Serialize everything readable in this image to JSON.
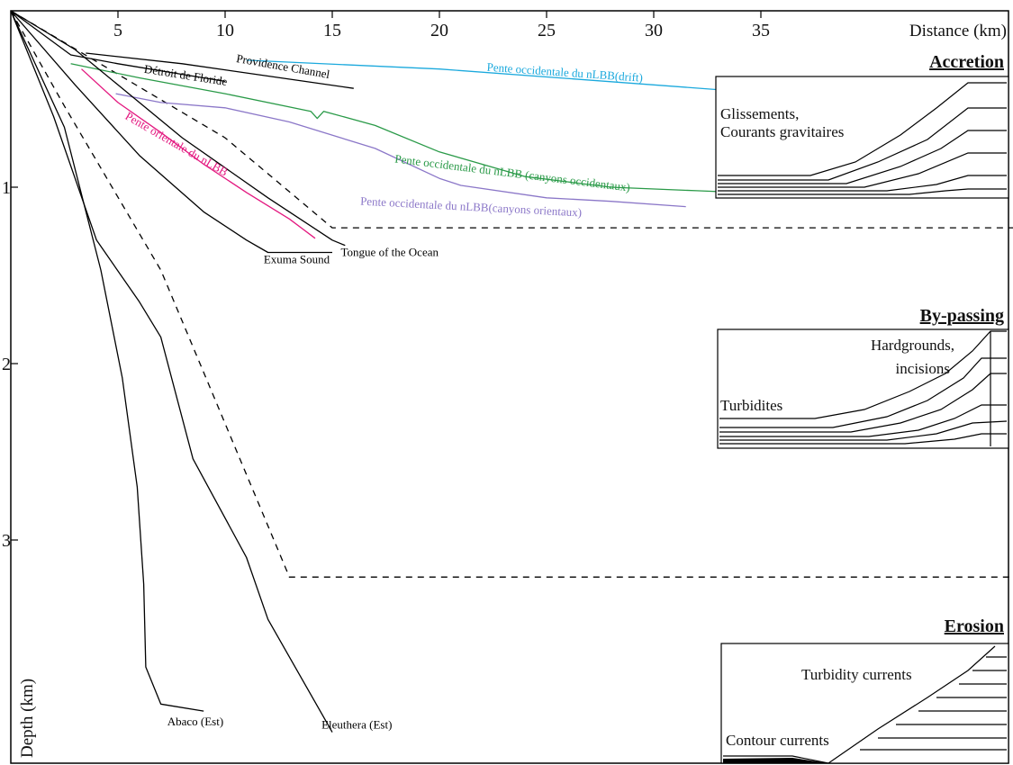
{
  "chart_data": {
    "type": "line",
    "xlabel": "Distance (km)",
    "ylabel": "Depth (km)",
    "xlim": [
      0,
      47
    ],
    "ylim": [
      0,
      3.55
    ],
    "x_ticks": [
      5,
      10,
      15,
      20,
      25,
      30,
      35
    ],
    "y_ticks": [
      1,
      2,
      3
    ],
    "grid": false,
    "series": [
      {
        "name": "Providence Channel",
        "color": "#000000",
        "points": [
          [
            3.5,
            0.24
          ],
          [
            8,
            0.3
          ],
          [
            12,
            0.37
          ],
          [
            16,
            0.44
          ]
        ],
        "label_at": [
          10.5,
          0.29
        ],
        "rot": 10
      },
      {
        "name": "Détroit de Floride",
        "color": "#000000",
        "points": [
          [
            0,
            0
          ],
          [
            2.8,
            0.25
          ],
          [
            5,
            0.3
          ],
          [
            8,
            0.36
          ],
          [
            10,
            0.4
          ]
        ],
        "label_at": [
          6.2,
          0.35
        ],
        "rot": 9
      },
      {
        "name": "Pente occidentale du nLBB(drift)",
        "color": "#1ba9dd",
        "points": [
          [
            11,
            0.28
          ],
          [
            20,
            0.33
          ],
          [
            30,
            0.42
          ],
          [
            35.5,
            0.47
          ]
        ],
        "label_at": [
          22.2,
          0.34
        ],
        "rot": 4
      },
      {
        "name": "Pente occidentale du nLBB (canyons occidentaux)",
        "color": "#2a9a48",
        "points": [
          [
            2.8,
            0.3
          ],
          [
            6,
            0.38
          ],
          [
            10,
            0.47
          ],
          [
            14,
            0.57
          ],
          [
            14.3,
            0.61
          ],
          [
            14.6,
            0.57
          ],
          [
            17,
            0.65
          ],
          [
            20,
            0.8
          ],
          [
            24,
            0.94
          ],
          [
            28,
            1.0
          ],
          [
            32,
            1.02
          ],
          [
            36,
            1.04
          ]
        ],
        "label_at": [
          17.9,
          0.86
        ],
        "rot": 7
      },
      {
        "name": "Pente occidentale du nLBB(canyons orientaux)",
        "color": "#8b77c8",
        "points": [
          [
            4.9,
            0.47
          ],
          [
            7,
            0.52
          ],
          [
            10,
            0.55
          ],
          [
            13,
            0.63
          ],
          [
            17,
            0.78
          ],
          [
            20,
            0.95
          ],
          [
            21,
            0.99
          ],
          [
            25,
            1.06
          ],
          [
            28,
            1.08
          ],
          [
            31.5,
            1.11
          ]
        ],
        "label_at": [
          16.3,
          1.1
        ],
        "rot": 3
      },
      {
        "name": "Pente orientale du nLBB",
        "color": "#e3177f",
        "points": [
          [
            3.3,
            0.33
          ],
          [
            5,
            0.52
          ],
          [
            7,
            0.69
          ],
          [
            9,
            0.87
          ],
          [
            11,
            1.03
          ],
          [
            13,
            1.18
          ],
          [
            14.2,
            1.29
          ]
        ],
        "label_at": [
          5.3,
          0.61
        ],
        "rot": 30
      },
      {
        "name": "Exuma Sound",
        "color": "#000000",
        "points": [
          [
            0,
            0
          ],
          [
            3,
            0.42
          ],
          [
            6,
            0.82
          ],
          [
            9,
            1.14
          ],
          [
            11,
            1.3
          ],
          [
            12,
            1.37
          ],
          [
            15,
            1.37
          ]
        ],
        "label_at": [
          11.8,
          1.43
        ],
        "rot": 0
      },
      {
        "name": "Tongue of the Ocean",
        "color": "#000000",
        "points": [
          [
            0,
            0
          ],
          [
            3,
            0.22
          ],
          [
            5,
            0.42
          ],
          [
            8,
            0.72
          ],
          [
            12,
            1.06
          ],
          [
            15,
            1.3
          ],
          [
            15.6,
            1.33
          ]
        ],
        "label_at": [
          15.4,
          1.39
        ],
        "rot": 0
      },
      {
        "name": "Abaco (Est)",
        "color": "#000000",
        "points": [
          [
            0,
            0
          ],
          [
            2.5,
            0.66
          ],
          [
            4.2,
            1.47
          ],
          [
            5.2,
            2.08
          ],
          [
            5.9,
            2.7
          ],
          [
            6.2,
            3.25
          ],
          [
            6.3,
            3.72
          ],
          [
            7,
            3.93
          ],
          [
            9,
            3.97
          ]
        ],
        "label_at": [
          7.3,
          4.05
        ],
        "rot": 0
      },
      {
        "name": "Eleuthera (Est)",
        "color": "#000000",
        "points": [
          [
            0,
            0
          ],
          [
            2,
            0.6
          ],
          [
            4,
            1.3
          ],
          [
            6,
            1.65
          ],
          [
            7,
            1.85
          ],
          [
            8.5,
            2.54
          ],
          [
            11,
            3.1
          ],
          [
            12,
            3.45
          ],
          [
            15,
            4.09
          ]
        ],
        "label_at": [
          14.5,
          4.07
        ],
        "rot": 0
      }
    ],
    "reference_lines": [
      {
        "style": "dashed",
        "points": [
          [
            0,
            0
          ],
          [
            10,
            0.72
          ],
          [
            15,
            1.23
          ],
          [
            47,
            1.23
          ]
        ]
      },
      {
        "style": "dashed",
        "points": [
          [
            0,
            0
          ],
          [
            2.5,
            0.54
          ],
          [
            7,
            1.47
          ],
          [
            13,
            3.21
          ],
          [
            47,
            3.21
          ]
        ]
      }
    ]
  },
  "panels": [
    {
      "id": "accretion",
      "title": "Accretion",
      "texts": [
        "Glissements,",
        "Courants gravitaires"
      ]
    },
    {
      "id": "bypassing",
      "title": "By-passing",
      "texts": [
        "Hardgrounds,",
        "incisions",
        "Turbidites"
      ]
    },
    {
      "id": "erosion",
      "title": "Erosion",
      "texts": [
        "Turbidity currents",
        "Contour currents"
      ]
    }
  ]
}
